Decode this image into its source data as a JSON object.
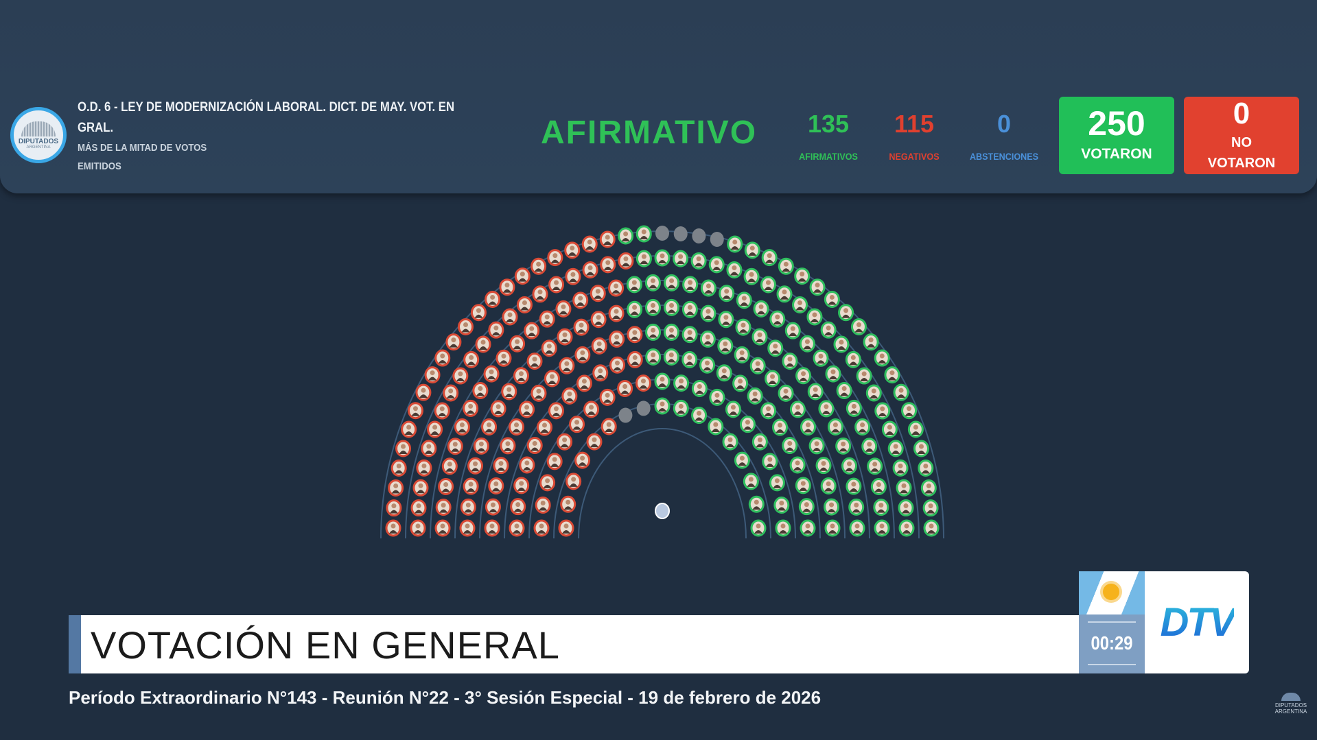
{
  "header": {
    "logo_text": "DIPUTADOS",
    "logo_subtext": "ARGENTINA",
    "title": "O.D. 6 - LEY DE MODERNIZACIÓN LABORAL. DICT. DE MAY. VOT. EN GRAL.",
    "majority": "MÁS DE LA MITAD DE VOTOS EMITIDOS",
    "result": "AFIRMATIVO",
    "afirmativos": {
      "value": "135",
      "label": "AFIRMATIVOS",
      "color": "#2fc157"
    },
    "negativos": {
      "value": "115",
      "label": "NEGATIVOS",
      "color": "#e0402f"
    },
    "abstenciones": {
      "value": "0",
      "label": "ABSTENCIONES",
      "color": "#4a90d9"
    },
    "votaron": {
      "value": "250",
      "label": "VOTARON",
      "color": "#21bf58"
    },
    "no_votaron": {
      "value": "0",
      "label": "NO VOTARON",
      "color": "#e1412f"
    }
  },
  "chamber": {
    "seats_voted_yes": 135,
    "seats_voted_no": 115,
    "seats_empty": 6,
    "colors": {
      "yes": "#2fbf5e",
      "no": "#d94a35",
      "empty": "#7d838a"
    }
  },
  "lower_third": {
    "title": "VOTACIÓN EN GENERAL",
    "timer": "00:29",
    "channel_logo": "DTV",
    "ticker": "Período Extraordinario N°143 - Reunión N°22 - 3° Sesión Especial - 19 de febrero de 2026",
    "watermark": "DIPUTADOS ARGENTINA"
  }
}
